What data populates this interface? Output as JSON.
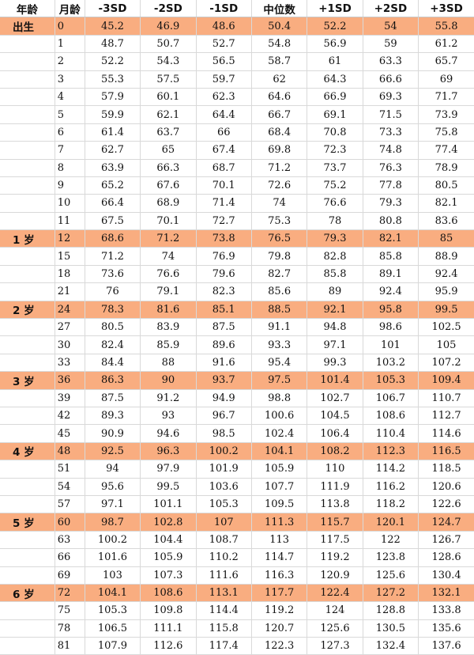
{
  "colors": {
    "highlight": "#f9ad80",
    "gridline": "#d9d9d9",
    "text": "#111111"
  },
  "headers": [
    "年龄",
    "月龄",
    "-3SD",
    "-2SD",
    "-1SD",
    "中位数",
    "+1SD",
    "+2SD",
    "+3SD"
  ],
  "rows": [
    {
      "age": "出生",
      "month": "0",
      "values": [
        "45.2",
        "46.9",
        "48.6",
        "50.4",
        "52.2",
        "54",
        "55.8"
      ]
    },
    {
      "age": "",
      "month": "1",
      "values": [
        "48.7",
        "50.7",
        "52.7",
        "54.8",
        "56.9",
        "59",
        "61.2"
      ]
    },
    {
      "age": "",
      "month": "2",
      "values": [
        "52.2",
        "54.3",
        "56.5",
        "58.7",
        "61",
        "63.3",
        "65.7"
      ]
    },
    {
      "age": "",
      "month": "3",
      "values": [
        "55.3",
        "57.5",
        "59.7",
        "62",
        "64.3",
        "66.6",
        "69"
      ]
    },
    {
      "age": "",
      "month": "4",
      "values": [
        "57.9",
        "60.1",
        "62.3",
        "64.6",
        "66.9",
        "69.3",
        "71.7"
      ]
    },
    {
      "age": "",
      "month": "5",
      "values": [
        "59.9",
        "62.1",
        "64.4",
        "66.7",
        "69.1",
        "71.5",
        "73.9"
      ]
    },
    {
      "age": "",
      "month": "6",
      "values": [
        "61.4",
        "63.7",
        "66",
        "68.4",
        "70.8",
        "73.3",
        "75.8"
      ]
    },
    {
      "age": "",
      "month": "7",
      "values": [
        "62.7",
        "65",
        "67.4",
        "69.8",
        "72.3",
        "74.8",
        "77.4"
      ]
    },
    {
      "age": "",
      "month": "8",
      "values": [
        "63.9",
        "66.3",
        "68.7",
        "71.2",
        "73.7",
        "76.3",
        "78.9"
      ]
    },
    {
      "age": "",
      "month": "9",
      "values": [
        "65.2",
        "67.6",
        "70.1",
        "72.6",
        "75.2",
        "77.8",
        "80.5"
      ]
    },
    {
      "age": "",
      "month": "10",
      "values": [
        "66.4",
        "68.9",
        "71.4",
        "74",
        "76.6",
        "79.3",
        "82.1"
      ]
    },
    {
      "age": "",
      "month": "11",
      "values": [
        "67.5",
        "70.1",
        "72.7",
        "75.3",
        "78",
        "80.8",
        "83.6"
      ]
    },
    {
      "age": "1 岁",
      "month": "12",
      "values": [
        "68.6",
        "71.2",
        "73.8",
        "76.5",
        "79.3",
        "82.1",
        "85"
      ]
    },
    {
      "age": "",
      "month": "15",
      "values": [
        "71.2",
        "74",
        "76.9",
        "79.8",
        "82.8",
        "85.8",
        "88.9"
      ]
    },
    {
      "age": "",
      "month": "18",
      "values": [
        "73.6",
        "76.6",
        "79.6",
        "82.7",
        "85.8",
        "89.1",
        "92.4"
      ]
    },
    {
      "age": "",
      "month": "21",
      "values": [
        "76",
        "79.1",
        "82.3",
        "85.6",
        "89",
        "92.4",
        "95.9"
      ]
    },
    {
      "age": "2 岁",
      "month": "24",
      "values": [
        "78.3",
        "81.6",
        "85.1",
        "88.5",
        "92.1",
        "95.8",
        "99.5"
      ]
    },
    {
      "age": "",
      "month": "27",
      "values": [
        "80.5",
        "83.9",
        "87.5",
        "91.1",
        "94.8",
        "98.6",
        "102.5"
      ]
    },
    {
      "age": "",
      "month": "30",
      "values": [
        "82.4",
        "85.9",
        "89.6",
        "93.3",
        "97.1",
        "101",
        "105"
      ]
    },
    {
      "age": "",
      "month": "33",
      "values": [
        "84.4",
        "88",
        "91.6",
        "95.4",
        "99.3",
        "103.2",
        "107.2"
      ]
    },
    {
      "age": "3 岁",
      "month": "36",
      "values": [
        "86.3",
        "90",
        "93.7",
        "97.5",
        "101.4",
        "105.3",
        "109.4"
      ]
    },
    {
      "age": "",
      "month": "39",
      "values": [
        "87.5",
        "91.2",
        "94.9",
        "98.8",
        "102.7",
        "106.7",
        "110.7"
      ]
    },
    {
      "age": "",
      "month": "42",
      "values": [
        "89.3",
        "93",
        "96.7",
        "100.6",
        "104.5",
        "108.6",
        "112.7"
      ]
    },
    {
      "age": "",
      "month": "45",
      "values": [
        "90.9",
        "94.6",
        "98.5",
        "102.4",
        "106.4",
        "110.4",
        "114.6"
      ]
    },
    {
      "age": "4 岁",
      "month": "48",
      "values": [
        "92.5",
        "96.3",
        "100.2",
        "104.1",
        "108.2",
        "112.3",
        "116.5"
      ]
    },
    {
      "age": "",
      "month": "51",
      "values": [
        "94",
        "97.9",
        "101.9",
        "105.9",
        "110",
        "114.2",
        "118.5"
      ]
    },
    {
      "age": "",
      "month": "54",
      "values": [
        "95.6",
        "99.5",
        "103.6",
        "107.7",
        "111.9",
        "116.2",
        "120.6"
      ]
    },
    {
      "age": "",
      "month": "57",
      "values": [
        "97.1",
        "101.1",
        "105.3",
        "109.5",
        "113.8",
        "118.2",
        "122.6"
      ]
    },
    {
      "age": "5 岁",
      "month": "60",
      "values": [
        "98.7",
        "102.8",
        "107",
        "111.3",
        "115.7",
        "120.1",
        "124.7"
      ]
    },
    {
      "age": "",
      "month": "63",
      "values": [
        "100.2",
        "104.4",
        "108.7",
        "113",
        "117.5",
        "122",
        "126.7"
      ]
    },
    {
      "age": "",
      "month": "66",
      "values": [
        "101.6",
        "105.9",
        "110.2",
        "114.7",
        "119.2",
        "123.8",
        "128.6"
      ]
    },
    {
      "age": "",
      "month": "69",
      "values": [
        "103",
        "107.3",
        "111.6",
        "116.3",
        "120.9",
        "125.6",
        "130.4"
      ]
    },
    {
      "age": "6 岁",
      "month": "72",
      "values": [
        "104.1",
        "108.6",
        "113.1",
        "117.7",
        "122.4",
        "127.2",
        "132.1"
      ]
    },
    {
      "age": "",
      "month": "75",
      "values": [
        "105.3",
        "109.8",
        "114.4",
        "119.2",
        "124",
        "128.8",
        "133.8"
      ]
    },
    {
      "age": "",
      "month": "78",
      "values": [
        "106.5",
        "111.1",
        "115.8",
        "120.7",
        "125.6",
        "130.5",
        "135.6"
      ]
    },
    {
      "age": "",
      "month": "81",
      "values": [
        "107.9",
        "112.6",
        "117.4",
        "122.3",
        "127.3",
        "132.4",
        "137.6"
      ]
    }
  ]
}
